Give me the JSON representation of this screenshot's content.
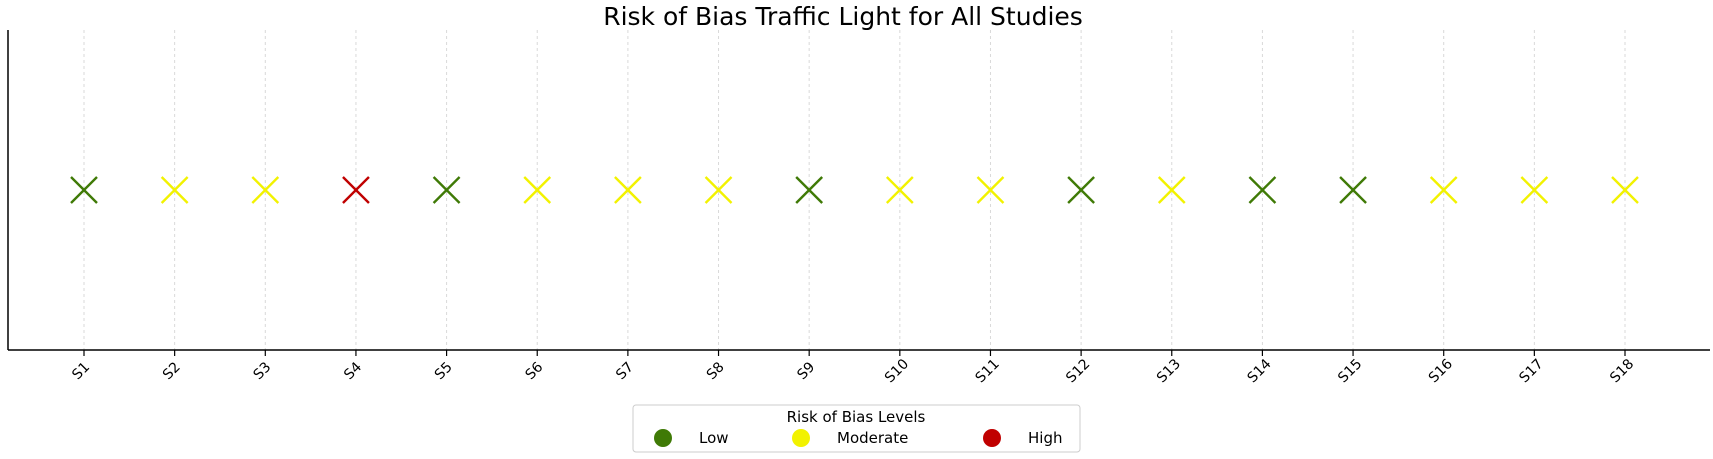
{
  "chart_data": {
    "type": "scatter",
    "title": "Risk of Bias Traffic Light for All Studies",
    "xlabel": "",
    "ylabel": "",
    "marker": "x",
    "grid": "vertical dashed lines at each study",
    "categories": [
      "S1",
      "S2",
      "S3",
      "S4",
      "S5",
      "S6",
      "S7",
      "S8",
      "S9",
      "S10",
      "S11",
      "S12",
      "S13",
      "S14",
      "S15",
      "S16",
      "S17",
      "S18"
    ],
    "values": [
      "Low",
      "Moderate",
      "Moderate",
      "High",
      "Low",
      "Moderate",
      "Moderate",
      "Moderate",
      "Low",
      "Moderate",
      "Moderate",
      "Low",
      "Moderate",
      "Low",
      "Low",
      "Moderate",
      "Moderate",
      "Moderate"
    ],
    "legend": {
      "title": "Risk of Bias Levels",
      "placement": "bottom-center",
      "items": [
        {
          "label": "Low",
          "color": "#3f7a06"
        },
        {
          "label": "Moderate",
          "color": "#f2f200"
        },
        {
          "label": "High",
          "color": "#c00000"
        }
      ]
    }
  }
}
